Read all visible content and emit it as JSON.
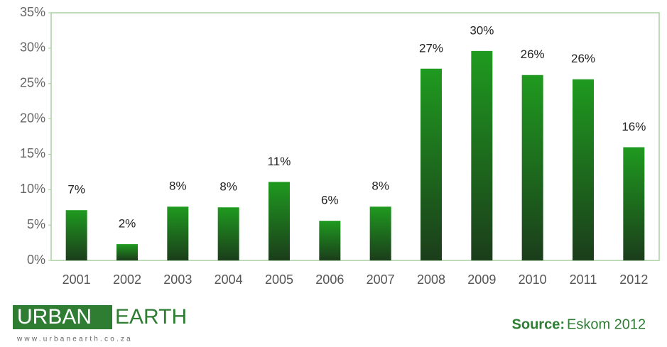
{
  "chart_data": {
    "type": "bar",
    "categories": [
      "2001",
      "2002",
      "2003",
      "2004",
      "2005",
      "2006",
      "2007",
      "2008",
      "2009",
      "2010",
      "2011",
      "2012"
    ],
    "values": [
      7.1,
      2.3,
      7.6,
      7.5,
      11.1,
      5.6,
      7.6,
      27.1,
      29.6,
      26.2,
      25.6,
      16.0
    ],
    "value_labels": [
      "7%",
      "2%",
      "8%",
      "8%",
      "11%",
      "6%",
      "8%",
      "27%",
      "30%",
      "26%",
      "26%",
      "16%"
    ],
    "color": "#1f8a1f",
    "ylim": [
      0,
      35
    ],
    "yticks": [
      {
        "value": 0,
        "label": "0%"
      },
      {
        "value": 5,
        "label": "5%"
      },
      {
        "value": 10,
        "label": "10%"
      },
      {
        "value": 15,
        "label": "15%"
      },
      {
        "value": 20,
        "label": "20%"
      },
      {
        "value": 25,
        "label": "25%"
      },
      {
        "value": 30,
        "label": "30%"
      },
      {
        "value": 35,
        "label": "35%"
      }
    ]
  },
  "footer": {
    "logo_left": "URBAN",
    "logo_right": "EARTH",
    "logo_url": "www.urbanearth.co.za",
    "source_label": "Source:",
    "source": "Eskom 2012"
  }
}
